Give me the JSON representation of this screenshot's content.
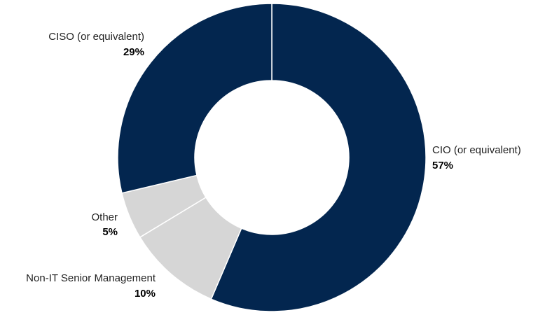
{
  "chart_data": {
    "type": "pie",
    "style": "donut",
    "categories": [
      "CIO (or equivalent)",
      "Non-IT Senior Management",
      "Other",
      "CISO (or equivalent)"
    ],
    "values": [
      57,
      10,
      5,
      29
    ],
    "value_labels": [
      "57%",
      "10%",
      "5%",
      "29%"
    ],
    "colors": [
      "#03264f",
      "#d6d6d6",
      "#d6d6d6",
      "#03264f"
    ],
    "start": "top",
    "direction": "clockwise",
    "legend": "none"
  }
}
